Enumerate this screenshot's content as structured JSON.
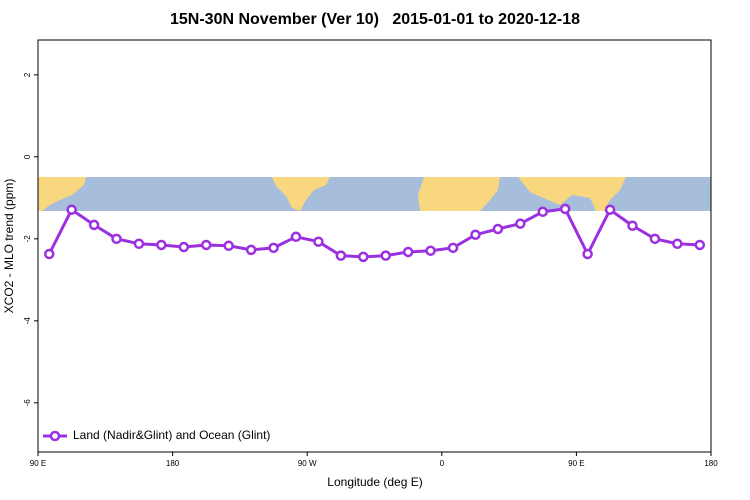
{
  "chart_data": {
    "type": "line",
    "title": "15N-30N November (Ver 10)   2015-01-01 to 2020-12-18",
    "x_label": "Longitude (deg E)",
    "y_label": "XCO2 - MLO trend (ppm)",
    "xlim": [
      90,
      540
    ],
    "ylim": [
      -7.2,
      2.85
    ],
    "xticks": [
      {
        "value": 90,
        "label": "90 E"
      },
      180,
      {
        "value": 270,
        "label": "90 W"
      },
      {
        "value": 360,
        "label": "0"
      },
      {
        "value": 450,
        "label": "90 E"
      },
      {
        "value": 540,
        "label": "180"
      }
    ],
    "yticks": [
      2,
      0,
      -2,
      -4,
      -6
    ],
    "legend": "bottom-left",
    "series": [
      {
        "name": "Land (Nadir&Glint) and Ocean (Glint)",
        "color": "#9b30e0",
        "x": [
          97.5,
          112.5,
          127.5,
          142.5,
          157.5,
          172.5,
          187.5,
          202.5,
          217.5,
          232.5,
          247.5,
          262.5,
          277.5,
          292.5,
          307.5,
          322.5,
          337.5,
          352.5,
          367.5,
          382.5,
          397.5,
          412.5,
          427.5,
          442.5,
          457.5,
          472.5,
          487.5,
          502.5,
          517.5,
          532.5
        ],
        "values": [
          -2.37,
          -1.29,
          -1.66,
          -2.0,
          -2.12,
          -2.15,
          -2.2,
          -2.15,
          -2.17,
          -2.27,
          -2.22,
          -1.95,
          -2.07,
          -2.41,
          -2.44,
          -2.41,
          -2.32,
          -2.29,
          -2.22,
          -1.9,
          -1.76,
          -1.63,
          -1.34,
          -1.27,
          -2.37,
          -1.29,
          -1.68,
          -2.0,
          -2.12,
          -2.15
        ]
      }
    ]
  }
}
